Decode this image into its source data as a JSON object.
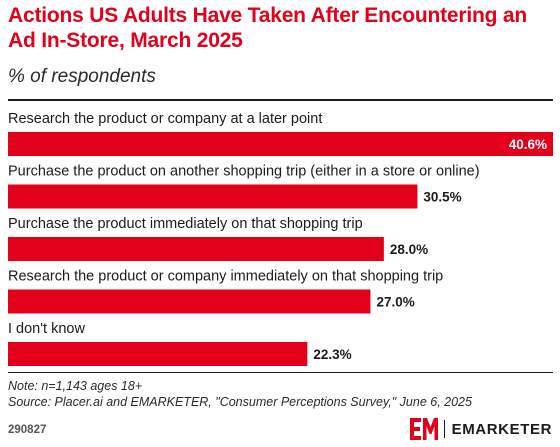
{
  "chart_data": {
    "type": "bar",
    "orientation": "horizontal",
    "title": "Actions US Adults Have Taken After Encountering an Ad In-Store, March 2025",
    "subtitle": "% of respondents",
    "categories": [
      "Research the product or company at a later point",
      "Purchase the product on another shopping trip (either in a store or online)",
      "Purchase the product immediately on that shopping trip",
      "Research the product or company immediately on that shopping trip",
      "I don't know"
    ],
    "values": [
      40.6,
      30.5,
      28.0,
      27.0,
      22.3
    ],
    "value_labels": [
      "40.6%",
      "30.5%",
      "28.0%",
      "27.0%",
      "22.3%"
    ],
    "xlim": [
      0,
      40.6
    ],
    "grid": false,
    "legend": "none",
    "bar_color": "#e3001b"
  },
  "footer": {
    "note": "Note: n=1,143 ages 18+",
    "source": "Source: Placer.ai and EMARKETER, \"Consumer Perceptions Survey,\" June 6, 2025",
    "chart_id": "290827",
    "brand_name": "EMARKETER"
  },
  "colors": {
    "accent": "#e3001b",
    "text": "#1b1b1b"
  }
}
